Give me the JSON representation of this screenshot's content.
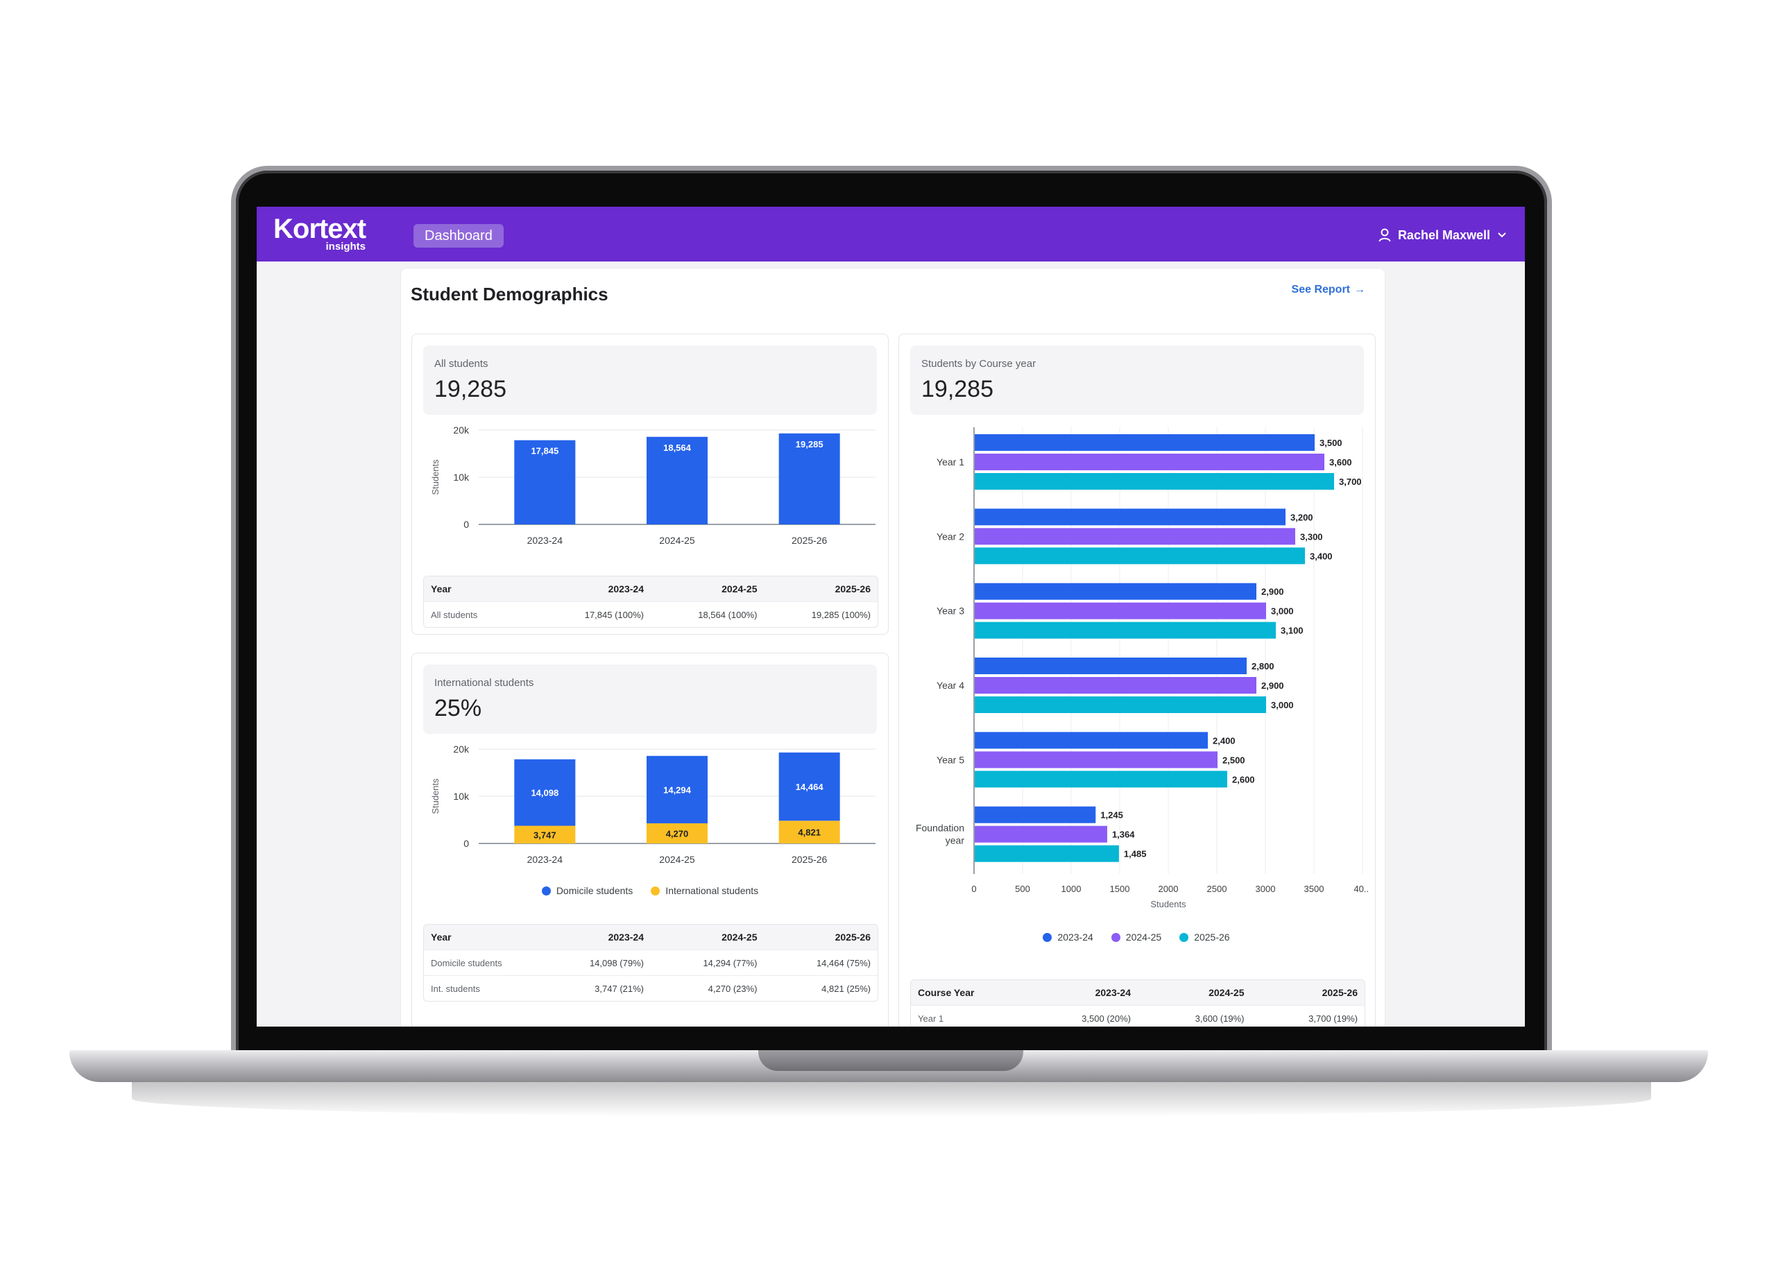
{
  "header": {
    "logo_main": "Kortext",
    "logo_sub": "insights",
    "nav_button": "Dashboard",
    "user_name": "Rachel Maxwell"
  },
  "page": {
    "title": "Student Demographics",
    "see_report": "See Report",
    "see_report_arrow": "→"
  },
  "colors": {
    "brand": "#6a2bd0",
    "series_2023": "#2563eb",
    "series_2024": "#8b5cf6",
    "series_2025": "#06b6d4",
    "domicile": "#2563eb",
    "international": "#fbbf24"
  },
  "all_students": {
    "label": "All students",
    "value": "19,285",
    "table": {
      "headers": [
        "Year",
        "2023-24",
        "2024-25",
        "2025-26"
      ],
      "rows": [
        [
          "All students",
          "17,845 (100%)",
          "18,564 (100%)",
          "19,285 (100%)"
        ]
      ]
    }
  },
  "international": {
    "label": "International students",
    "value": "25%",
    "legend": [
      "Domicile students",
      "International students"
    ],
    "table": {
      "headers": [
        "Year",
        "2023-24",
        "2024-25",
        "2025-26"
      ],
      "rows": [
        [
          "Domicile students",
          "14,098 (79%)",
          "14,294 (77%)",
          "14,464 (75%)"
        ],
        [
          "Int. students",
          "3,747 (21%)",
          "4,270 (23%)",
          "4,821 (25%)"
        ]
      ]
    }
  },
  "course_year": {
    "label": "Students by Course year",
    "value": "19,285",
    "table": {
      "headers": [
        "Course Year",
        "2023-24",
        "2024-25",
        "2025-26"
      ],
      "rows": [
        [
          "Year 1",
          "3,500 (20%)",
          "3,600 (19%)",
          "3,700 (19%)"
        ]
      ]
    }
  },
  "chart_data": [
    {
      "type": "bar",
      "categories": [
        "2023-24",
        "2024-25",
        "2025-26"
      ],
      "values": [
        17845,
        18564,
        19285
      ],
      "labels": [
        "17,845",
        "18,564",
        "19,285"
      ],
      "ylabel": "Students",
      "ylim": [
        0,
        20000
      ],
      "yticks": [
        "0",
        "10k",
        "20k"
      ],
      "grid": true
    },
    {
      "type": "bar",
      "stacked": true,
      "categories": [
        "2023-24",
        "2024-25",
        "2025-26"
      ],
      "series": [
        {
          "name": "Domicile students",
          "values": [
            14098,
            14294,
            14464
          ],
          "labels": [
            "14,098",
            "14,294",
            "14,464"
          ]
        },
        {
          "name": "International students",
          "values": [
            3747,
            4270,
            4821
          ],
          "labels": [
            "3,747",
            "4,270",
            "4,821"
          ]
        }
      ],
      "ylabel": "Students",
      "ylim": [
        0,
        20000
      ],
      "yticks": [
        "0",
        "10k",
        "20k"
      ],
      "legend": "bottom",
      "grid": true
    },
    {
      "type": "bar",
      "orientation": "horizontal",
      "categories": [
        "Year 1",
        "Year 2",
        "Year 3",
        "Year 4",
        "Year 5",
        "Foundation year"
      ],
      "series": [
        {
          "name": "2023-24",
          "values": [
            3500,
            3200,
            2900,
            2800,
            2400,
            1245
          ],
          "labels": [
            "3,500",
            "3,200",
            "2,900",
            "2,800",
            "2,400",
            "1,245"
          ]
        },
        {
          "name": "2024-25",
          "values": [
            3600,
            3300,
            3000,
            2900,
            2500,
            1364
          ],
          "labels": [
            "3,600",
            "3,300",
            "3,000",
            "2,900",
            "2,500",
            "1,364"
          ]
        },
        {
          "name": "2025-26",
          "values": [
            3700,
            3400,
            3100,
            3000,
            2600,
            1485
          ],
          "labels": [
            "3,700",
            "3,400",
            "3,100",
            "3,000",
            "2,600",
            "1,485"
          ]
        }
      ],
      "xlabel": "Students",
      "xlim": [
        0,
        4000
      ],
      "xticks": [
        "0",
        "500",
        "1000",
        "1500",
        "2000",
        "2500",
        "3000",
        "3500",
        "40..."
      ],
      "legend": "bottom",
      "grid": true
    }
  ]
}
